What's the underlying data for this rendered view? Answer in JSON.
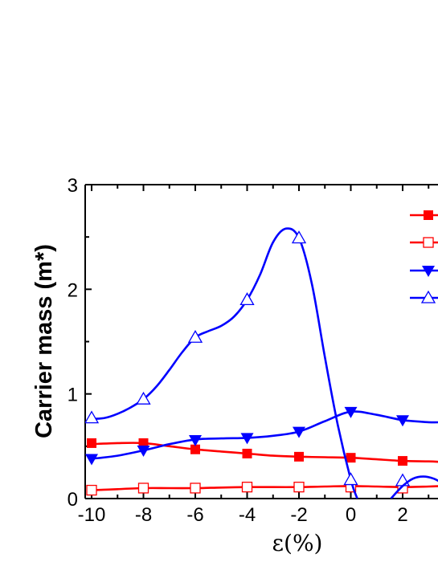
{
  "chart_data": {
    "type": "line",
    "xlabel": "ε(%)",
    "ylabel": "Carrier mass (m*)",
    "xlim": [
      -10,
      3.5
    ],
    "ylim": [
      0,
      3
    ],
    "xticks": [
      -10,
      -8,
      -6,
      -4,
      -2,
      0,
      2
    ],
    "yticks": [
      0,
      1,
      2,
      3
    ],
    "legend_position": "top-right (cropped)",
    "series": [
      {
        "marker": "filled-square",
        "color": "#ff0000",
        "points": [
          [
            -10,
            0.53
          ],
          [
            -8,
            0.53
          ],
          [
            -6,
            0.47
          ],
          [
            -4,
            0.43
          ],
          [
            -2,
            0.4
          ],
          [
            0,
            0.39
          ],
          [
            2,
            0.36
          ]
        ],
        "curve": [
          [
            -10,
            0.52
          ],
          [
            -9,
            0.53
          ],
          [
            -8,
            0.53
          ],
          [
            -7,
            0.5
          ],
          [
            -6,
            0.47
          ],
          [
            -5,
            0.45
          ],
          [
            -4,
            0.43
          ],
          [
            -3,
            0.41
          ],
          [
            -2,
            0.4
          ],
          [
            -1,
            0.395
          ],
          [
            0,
            0.39
          ],
          [
            1,
            0.375
          ],
          [
            2,
            0.36
          ],
          [
            3,
            0.355
          ],
          [
            3.5,
            0.35
          ]
        ]
      },
      {
        "marker": "open-square",
        "color": "#ff0000",
        "points": [
          [
            -10,
            0.08
          ],
          [
            -8,
            0.1
          ],
          [
            -6,
            0.1
          ],
          [
            -4,
            0.11
          ],
          [
            -2,
            0.11
          ],
          [
            0,
            0.11
          ],
          [
            2,
            0.1
          ]
        ],
        "curve": [
          [
            -10,
            0.08
          ],
          [
            -9,
            0.09
          ],
          [
            -8,
            0.1
          ],
          [
            -7,
            0.1
          ],
          [
            -6,
            0.1
          ],
          [
            -5,
            0.105
          ],
          [
            -4,
            0.11
          ],
          [
            -3,
            0.11
          ],
          [
            -2,
            0.11
          ],
          [
            -1,
            0.115
          ],
          [
            0,
            0.12
          ],
          [
            1,
            0.115
          ],
          [
            2,
            0.11
          ],
          [
            3,
            0.115
          ],
          [
            3.5,
            0.12
          ]
        ]
      },
      {
        "marker": "filled-triangle-down",
        "color": "#0000ff",
        "points": [
          [
            -10,
            0.38
          ],
          [
            -8,
            0.46
          ],
          [
            -6,
            0.56
          ],
          [
            -4,
            0.58
          ],
          [
            -2,
            0.64
          ],
          [
            0,
            0.83
          ],
          [
            2,
            0.75
          ]
        ],
        "curve": [
          [
            -10,
            0.38
          ],
          [
            -9,
            0.41
          ],
          [
            -8,
            0.46
          ],
          [
            -7,
            0.52
          ],
          [
            -6,
            0.565
          ],
          [
            -5,
            0.575
          ],
          [
            -4,
            0.58
          ],
          [
            -3,
            0.6
          ],
          [
            -2,
            0.64
          ],
          [
            -1,
            0.74
          ],
          [
            0,
            0.83
          ],
          [
            1,
            0.8
          ],
          [
            2,
            0.75
          ],
          [
            3,
            0.73
          ],
          [
            3.5,
            0.73
          ]
        ]
      },
      {
        "marker": "open-triangle-up",
        "color": "#0000ff",
        "points": [
          [
            -10,
            0.77
          ],
          [
            -8,
            0.95
          ],
          [
            -6,
            1.54
          ],
          [
            -4,
            1.9
          ],
          [
            -2,
            2.49
          ],
          [
            0,
            0.18
          ],
          [
            2,
            0.17
          ]
        ],
        "curve": [
          [
            -10,
            0.76
          ],
          [
            -9.5,
            0.77
          ],
          [
            -9,
            0.81
          ],
          [
            -8.5,
            0.87
          ],
          [
            -8,
            0.95
          ],
          [
            -7.5,
            1.07
          ],
          [
            -7,
            1.23
          ],
          [
            -6.5,
            1.4
          ],
          [
            -6,
            1.54
          ],
          [
            -5.5,
            1.6
          ],
          [
            -5,
            1.65
          ],
          [
            -4.5,
            1.74
          ],
          [
            -4,
            1.9
          ],
          [
            -3.5,
            2.14
          ],
          [
            -3,
            2.45
          ],
          [
            -2.5,
            2.58
          ],
          [
            -2,
            2.49
          ],
          [
            -1.5,
            2.05
          ],
          [
            -1,
            1.35
          ],
          [
            -0.5,
            0.7
          ],
          [
            0,
            0.18
          ],
          [
            0.25,
            0.0
          ]
        ]
      },
      {
        "marker": "none",
        "color": "#0000ff",
        "curve": [
          [
            1.55,
            0.0
          ],
          [
            2,
            0.12
          ],
          [
            2.4,
            0.19
          ],
          [
            2.8,
            0.21
          ],
          [
            3.2,
            0.19
          ],
          [
            3.5,
            0.15
          ]
        ]
      }
    ]
  }
}
